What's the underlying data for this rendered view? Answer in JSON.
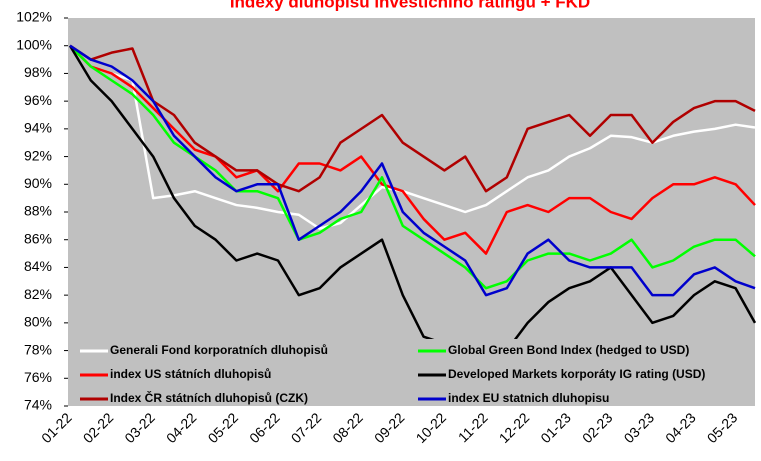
{
  "chart_data": {
    "type": "line",
    "title": "Indexy dluhopisů investičního ratingu + FKD",
    "categories": [
      "01-22",
      null,
      "02-22",
      null,
      "03-22",
      null,
      "04-22",
      null,
      "05-22",
      null,
      "06-22",
      null,
      "07-22",
      null,
      "08-22",
      null,
      "09-22",
      null,
      "10-22",
      null,
      "11-22",
      null,
      "12-22",
      null,
      "01-23",
      null,
      "02-23",
      null,
      "03-23",
      null,
      "04-23",
      null,
      "05-23",
      null
    ],
    "series": [
      {
        "name": "Generali Fond korporatních dluhopisů",
        "color": "#ffffff",
        "values": [
          100,
          98.5,
          98,
          97.5,
          89,
          89.2,
          89.5,
          89,
          88.5,
          88.3,
          88,
          87.8,
          86.8,
          87.2,
          88.5,
          89.8,
          89.5,
          89,
          88.5,
          88,
          88.5,
          89.5,
          90.5,
          91,
          92,
          92.6,
          93.5,
          93.4,
          93,
          93.5,
          93.8,
          94,
          94.3,
          94.1
        ]
      },
      {
        "name": "index US státních dluhopisů",
        "color": "#ff0000",
        "values": [
          100,
          98.5,
          98,
          97,
          95.5,
          94,
          92.5,
          92,
          90.5,
          91,
          89.5,
          91.5,
          91.5,
          91,
          92,
          90,
          89.5,
          87.5,
          86,
          86.5,
          85,
          88,
          88.5,
          88,
          89,
          89,
          88,
          87.5,
          89,
          90,
          90,
          90.5,
          90,
          88.5
        ]
      },
      {
        "name": "Index ČR státních dluhopisů (CZK)",
        "color": "#b00000",
        "values": [
          100,
          99,
          99.5,
          99.8,
          96,
          95,
          93,
          92,
          91,
          91,
          90,
          89.5,
          90.5,
          93,
          94,
          95,
          93,
          92,
          91,
          92,
          89.5,
          90.5,
          94,
          94.5,
          95,
          93.5,
          95,
          95,
          93,
          94.5,
          95.5,
          96,
          96,
          95.3
        ]
      },
      {
        "name": "Global Green Bond Index (hedged to USD)",
        "color": "#00ff00",
        "values": [
          100,
          98.5,
          97.5,
          96.5,
          95,
          93,
          92,
          91,
          89.5,
          89.5,
          89,
          86,
          86.5,
          87.5,
          88,
          90.5,
          87,
          86,
          85,
          84,
          82.5,
          83,
          84.5,
          85,
          85,
          84.5,
          85,
          86,
          84,
          84.5,
          85.5,
          86,
          86,
          84.8
        ]
      },
      {
        "name": "Developed Markets korporáty IG rating  (USD)",
        "color": "#000000",
        "values": [
          100,
          97.5,
          96,
          94,
          92,
          89,
          87,
          86,
          84.5,
          85,
          84.5,
          82,
          82.5,
          84,
          85,
          86,
          82,
          79,
          78.5,
          77.5,
          77,
          78,
          80,
          81.5,
          82.5,
          83,
          84,
          82,
          80,
          80.5,
          82,
          83,
          82.5,
          80
        ]
      },
      {
        "name": "index EU statnich dluhopisu",
        "color": "#0000cc",
        "values": [
          100,
          99,
          98.5,
          97.5,
          96,
          93.5,
          92,
          90.5,
          89.5,
          90,
          90,
          86,
          87,
          88,
          89.5,
          91.5,
          88,
          86.5,
          85.5,
          84.5,
          82,
          82.5,
          85,
          86,
          84.5,
          84,
          84,
          84,
          82,
          82,
          83.5,
          84,
          83,
          82.5
        ]
      }
    ],
    "ylim": [
      74,
      102
    ],
    "yticks": [
      {
        "value": 74,
        "label": "74%"
      },
      {
        "value": 76,
        "label": "76%"
      },
      {
        "value": 78,
        "label": "78%"
      },
      {
        "value": 80,
        "label": "80%"
      },
      {
        "value": 82,
        "label": "82%"
      },
      {
        "value": 84,
        "label": "84%"
      },
      {
        "value": 86,
        "label": "86%"
      },
      {
        "value": 88,
        "label": "88%"
      },
      {
        "value": 90,
        "label": "90%"
      },
      {
        "value": 92,
        "label": "92%"
      },
      {
        "value": 94,
        "label": "94%"
      },
      {
        "value": 96,
        "label": "96%"
      },
      {
        "value": 98,
        "label": "98%"
      },
      {
        "value": 100,
        "label": "100%"
      },
      {
        "value": 102,
        "label": "102%"
      }
    ],
    "grid": false,
    "legend": "lower left"
  }
}
